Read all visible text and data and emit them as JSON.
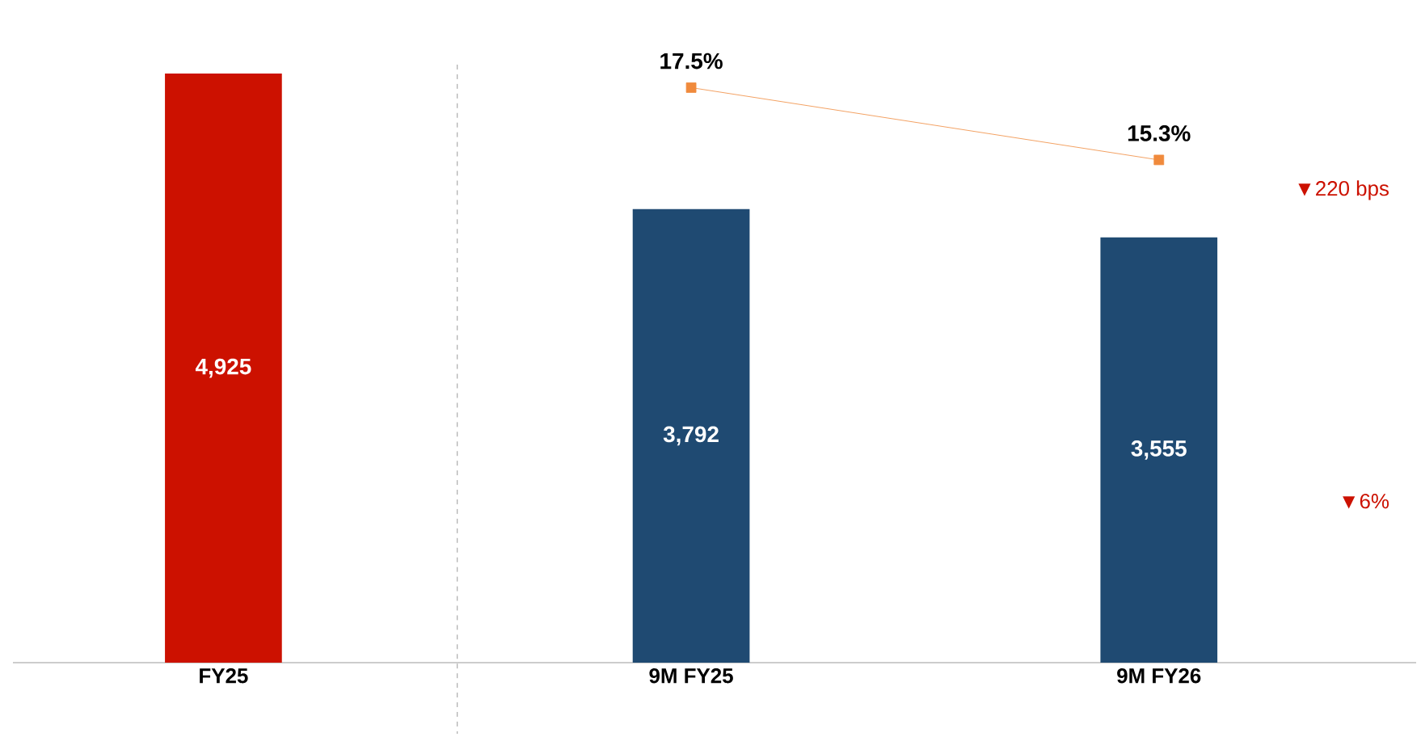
{
  "chart_data": {
    "type": "bar",
    "categories": [
      "FY25",
      "9M FY25",
      "9M FY26"
    ],
    "values": [
      4925,
      3792,
      3555
    ],
    "value_labels": [
      "4,925",
      "3,792",
      "3,555"
    ],
    "colors": [
      "#cc1100",
      "#1f4a72",
      "#1f4a72"
    ],
    "ylim": [
      0,
      5000
    ],
    "tick_labels": "x",
    "series": [
      {
        "type": "line",
        "axis": "y2",
        "color": "#f08a3c",
        "values": [
          null,
          17.5,
          15.3
        ],
        "value_labels": [
          null,
          "17.5%",
          "15.3%"
        ],
        "marker": "square",
        "line_style": "solid"
      }
    ],
    "y2lim": [
      0,
      18.2
    ],
    "annotations": [
      "▼220 bps",
      "▼6%"
    ]
  }
}
